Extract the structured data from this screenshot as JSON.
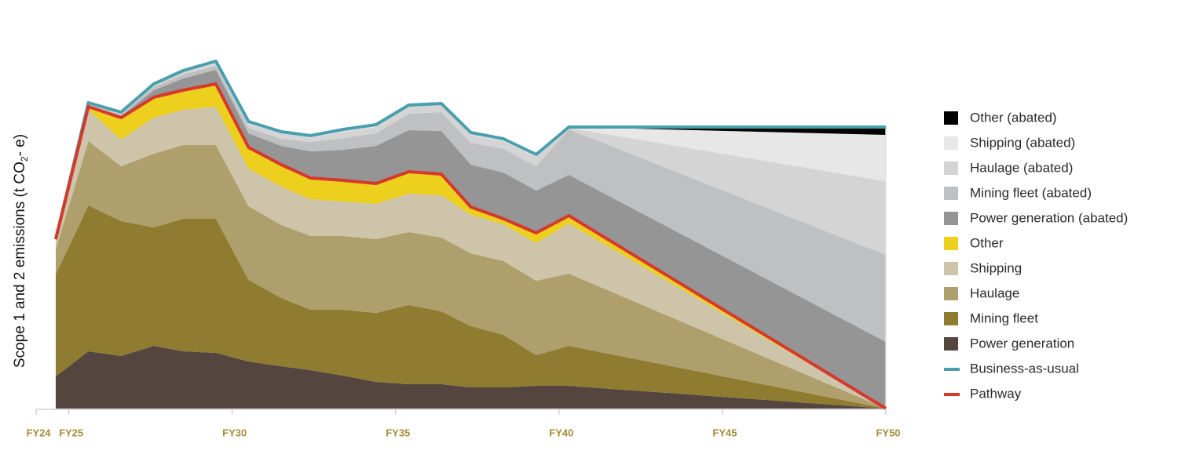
{
  "chart_data": {
    "type": "area",
    "y_label": [
      "Scope 1 and 2 emissions  (t CO",
      "2",
      "- e)"
    ],
    "x": [
      24.6,
      25.6,
      26.6,
      27.6,
      28.5,
      29.5,
      30.5,
      31.5,
      32.4,
      33.4,
      34.4,
      35.4,
      36.4,
      37.3,
      38.3,
      39.3,
      40.3,
      50
    ],
    "xlim": [
      24,
      50
    ],
    "xticks": [
      {
        "value": 24,
        "label": "FY24"
      },
      {
        "value": 25,
        "label": "FY25"
      },
      {
        "value": 30,
        "label": "FY30"
      },
      {
        "value": 35,
        "label": "FY35"
      },
      {
        "value": 40,
        "label": "FY40"
      },
      {
        "value": 45,
        "label": "FY45"
      },
      {
        "value": 50,
        "label": "FY50"
      }
    ],
    "ylim": [
      0,
      450
    ],
    "stacked": true,
    "series": [
      {
        "name": "Power generation",
        "color": "#54463f",
        "values": [
          41,
          73,
          67,
          80,
          73,
          71,
          60,
          54,
          49,
          42,
          34,
          31,
          31,
          27,
          27,
          29,
          29,
          0
        ]
      },
      {
        "name": "Mining fleet",
        "color": "#8f7c31",
        "values": [
          130,
          186,
          172,
          151,
          169,
          171,
          104,
          87,
          77,
          84,
          88,
          101,
          93,
          78,
          67,
          39,
          51,
          0
        ]
      },
      {
        "name": "Haulage",
        "color": "#ae9f6c",
        "values": [
          32,
          82,
          70,
          94,
          94,
          94,
          94,
          93,
          94,
          94,
          94,
          93,
          94,
          93,
          94,
          95,
          92,
          0
        ]
      },
      {
        "name": "Shipping",
        "color": "#cdc4a9",
        "values": [
          8,
          40,
          34,
          46,
          45,
          49,
          48,
          49,
          47,
          44,
          45,
          49,
          54,
          49,
          47,
          48,
          64,
          0
        ]
      },
      {
        "name": "Other",
        "color": "#ecd01d",
        "values": [
          5,
          4,
          28,
          26,
          25,
          29,
          27,
          28,
          27,
          27,
          26,
          28,
          27,
          10,
          7,
          13,
          10,
          0
        ]
      },
      {
        "name": "Power generation (abated)",
        "color": "#959596",
        "values": [
          0,
          2,
          2,
          9,
          15,
          18,
          18,
          24,
          34,
          39,
          48,
          53,
          55,
          54,
          59,
          54,
          52,
          85
        ]
      },
      {
        "name": "Mining fleet (abated)",
        "color": "#bfc0c1",
        "values": [
          0,
          1,
          2,
          4,
          5,
          5,
          7,
          9,
          12,
          15,
          16,
          21,
          24,
          28,
          30,
          31,
          58,
          111
        ]
      },
      {
        "name": "Haulage (abated)",
        "color": "#d4d4d5",
        "values": [
          0,
          1,
          1,
          2,
          3,
          3,
          5,
          7,
          5,
          8,
          8,
          9,
          10,
          10,
          10,
          12,
          2,
          94
        ]
      },
      {
        "name": "Shipping (abated)",
        "color": "#e7e7e8",
        "values": [
          0,
          1,
          2,
          2,
          2,
          3,
          3,
          2,
          3,
          3,
          3,
          2,
          1,
          3,
          3,
          3,
          1,
          59
        ]
      },
      {
        "name": "Other (abated)",
        "color": "#000000",
        "values": [
          0,
          0,
          0,
          0,
          0,
          0,
          0,
          0,
          0,
          0,
          0,
          0,
          0,
          0,
          0,
          0,
          0,
          10
        ]
      },
      {
        "name": "Business-as-usual",
        "type": "line",
        "color": "#4a9fae",
        "values": [
          216,
          390,
          378,
          414,
          431,
          443,
          366,
          353,
          348,
          356,
          362,
          387,
          389,
          352,
          344,
          324,
          359,
          359
        ]
      },
      {
        "name": "Pathway",
        "type": "line",
        "color": "#d6392c",
        "values": [
          216,
          385,
          371,
          397,
          406,
          414,
          333,
          311,
          294,
          291,
          287,
          302,
          299,
          257,
          242,
          224,
          246,
          0
        ]
      }
    ]
  }
}
